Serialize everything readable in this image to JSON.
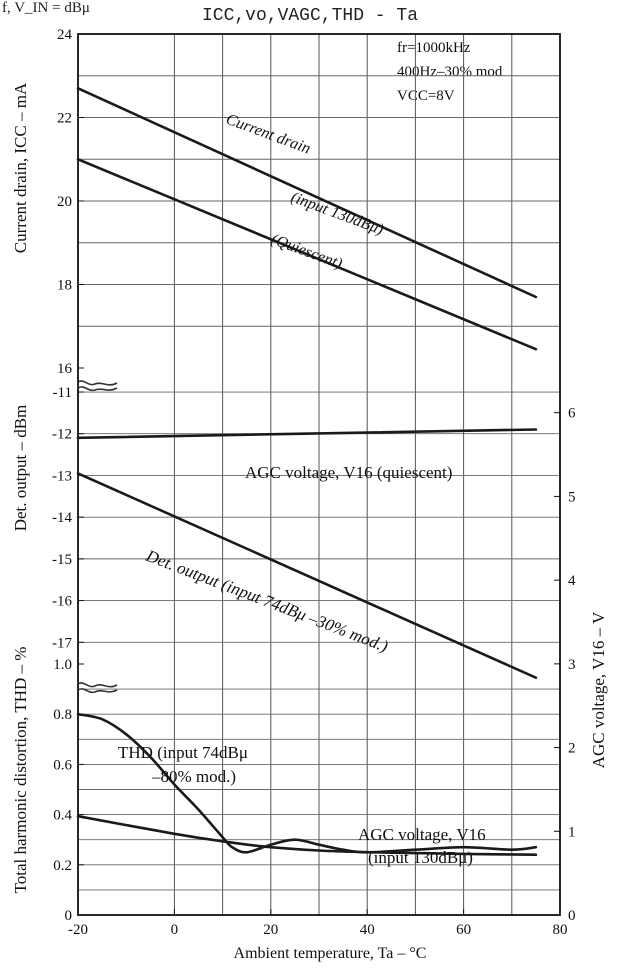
{
  "chart_data": {
    "type": "line",
    "header_fragment": "f, V_IN = dBμ",
    "title": "ICC,vo,VAGC,THD - Ta",
    "conditions": [
      "fr=1000kHz",
      "400Hz–30% mod",
      "VCC=8V"
    ],
    "xlabel": "Ambient temperature, Ta – °C",
    "xlim": [
      -20,
      80
    ],
    "x_ticks": [
      "-20",
      "0",
      "20",
      "40",
      "60",
      "80"
    ],
    "x_tick_values": [
      -20,
      0,
      20,
      40,
      60,
      80
    ],
    "grid": true,
    "panels": {
      "current": {
        "ylabel": "Current drain, ICC – mA",
        "ylim": [
          16,
          24
        ],
        "ticks": [
          16,
          18,
          20,
          22,
          24
        ],
        "tick_labels": [
          "16",
          "18",
          "20",
          "22",
          "24"
        ]
      },
      "detout": {
        "ylabel": "Det. output – dBm",
        "ylim": [
          -18,
          -10.4
        ],
        "ticks": [
          -11,
          -12,
          -13,
          -14,
          -15,
          -16,
          -17
        ],
        "tick_labels": [
          "-11",
          "-12",
          "-13",
          "-14",
          "-15",
          "-16",
          "-17"
        ]
      },
      "thd": {
        "ylabel": "Total harmonic distortion, THD – %",
        "ylim": [
          0,
          1.0
        ],
        "ticks": [
          0,
          0.2,
          0.4,
          0.6,
          0.8,
          1.0
        ],
        "tick_labels": [
          "0",
          "0.2",
          "0.4",
          "0.6",
          "0.8",
          "1.0"
        ]
      },
      "agc_right": {
        "ylabel": "AGC voltage, V16 – V",
        "ylim": [
          0,
          7
        ],
        "ticks": [
          0,
          1,
          2,
          3,
          4,
          5,
          6
        ],
        "tick_labels": [
          "0",
          "1",
          "2",
          "3",
          "4",
          "5",
          "6"
        ]
      }
    },
    "series": [
      {
        "name": "Current drain (input 130dBμ)",
        "panel": "current",
        "color": "#1a1a1a",
        "x": [
          -20,
          75
        ],
        "y": [
          22.7,
          17.7
        ]
      },
      {
        "name": "(Quiescent)",
        "panel": "current",
        "color": "#1a1a1a",
        "x": [
          -20,
          75
        ],
        "y": [
          21.0,
          16.45
        ]
      },
      {
        "name": "AGC voltage, V16 (quiescent)",
        "panel": "agc_right",
        "color": "#1a1a1a",
        "x": [
          -20,
          75
        ],
        "y": [
          5.7,
          5.8
        ]
      },
      {
        "name": "Det. output (input 74dBμ –30% mod.)",
        "panel": "detout",
        "color": "#1a1a1a",
        "x": [
          -20,
          75
        ],
        "y": [
          -12.95,
          -17.85
        ]
      },
      {
        "name": "THD (input 74dBμ –80% mod.)",
        "panel": "thd",
        "color": "#1a1a1a",
        "x": [
          -20,
          -15,
          -10,
          -5,
          0,
          5,
          10,
          12,
          15,
          20,
          25,
          30,
          35,
          40,
          50,
          60,
          70,
          75
        ],
        "y": [
          0.8,
          0.78,
          0.72,
          0.63,
          0.52,
          0.42,
          0.31,
          0.27,
          0.25,
          0.28,
          0.3,
          0.28,
          0.26,
          0.25,
          0.26,
          0.27,
          0.26,
          0.27
        ]
      },
      {
        "name": "AGC voltage, V16 (input 130dBμ)",
        "panel": "agc_right",
        "color": "#1a1a1a",
        "x": [
          -20,
          0,
          10,
          20,
          30,
          40,
          50,
          60,
          75
        ],
        "y": [
          1.18,
          0.97,
          0.88,
          0.81,
          0.77,
          0.75,
          0.74,
          0.73,
          0.72
        ]
      }
    ],
    "annotations": {
      "current_drain": "Current drain",
      "input130": "(input 130dBμ)",
      "quiescent": "(Quiescent)",
      "agc_quiescent": "AGC voltage, V16 (quiescent)",
      "det_output": "Det. output (input 74dBμ –30% mod.)",
      "thd_line1": "THD (input 74dBμ",
      "thd_line2": "–80% mod.)",
      "agc130_line1": "AGC voltage, V16",
      "agc130_line2": "(input 130dBμ)"
    }
  }
}
